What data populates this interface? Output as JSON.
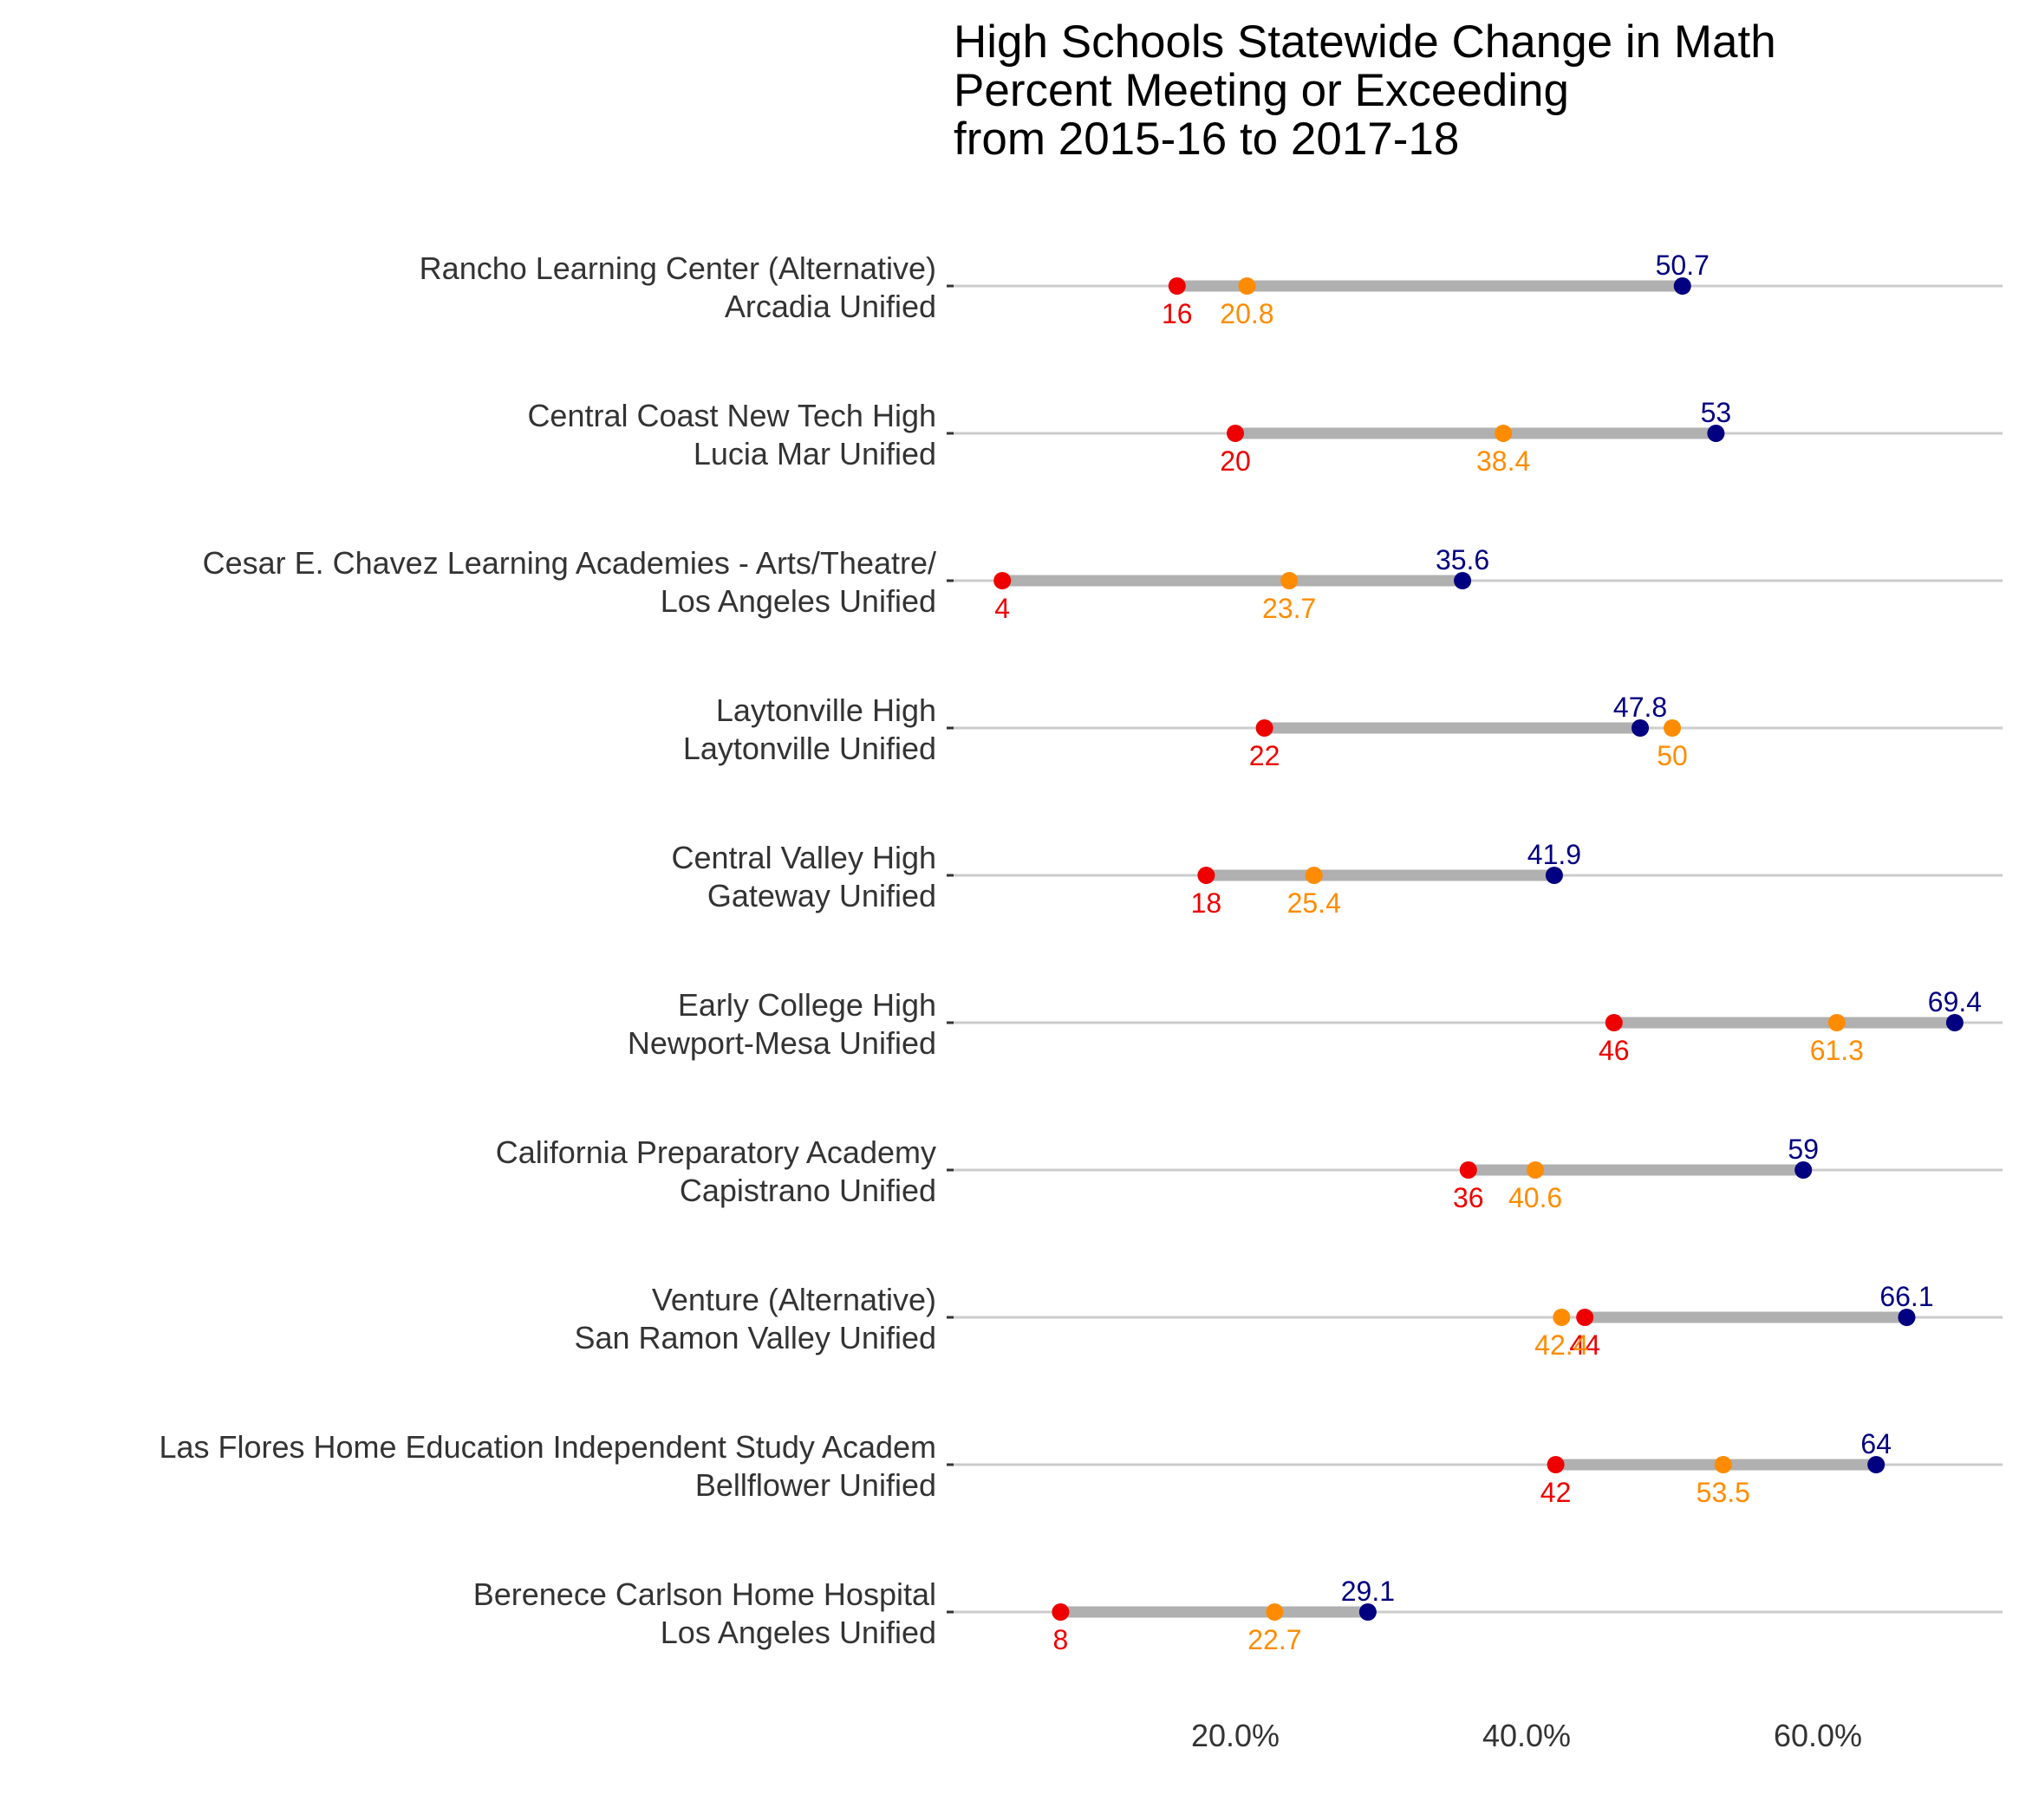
{
  "chart_data": {
    "type": "dumbbell",
    "title_lines": [
      "High Schools Statewide Change in Math",
      "Percent Meeting or Exceeding",
      "from 2015-16 to 2017-18"
    ],
    "xlabel": "",
    "ylabel": "",
    "xlim": [
      0,
      70
    ],
    "x_ticks": [
      20,
      40,
      60
    ],
    "x_tick_labels": [
      "20.0%",
      "40.0%",
      "60.0%"
    ],
    "grid": "horizontal lines at each row",
    "colors": {
      "start": "#ee0000",
      "middle": "#ff8c00",
      "end": "#000080",
      "bar": "#b0b0b0",
      "gridline": "#cccccc"
    },
    "series": [
      {
        "name": "start",
        "color": "#ee0000"
      },
      {
        "name": "middle",
        "color": "#ff8c00"
      },
      {
        "name": "end",
        "color": "#000080"
      }
    ],
    "rows": [
      {
        "school": "Rancho Learning Center (Alternative)",
        "district": "Arcadia Unified",
        "start": 16,
        "middle": 20.8,
        "end": 50.7,
        "start_label": "16",
        "middle_label": "20.8",
        "end_label": "50.7"
      },
      {
        "school": "Central Coast New Tech High",
        "district": "Lucia Mar Unified",
        "start": 20,
        "middle": 38.4,
        "end": 53,
        "start_label": "20",
        "middle_label": "38.4",
        "end_label": "53"
      },
      {
        "school": "Cesar E. Chavez Learning Academies - Arts/Theatre/",
        "district": "Los Angeles Unified",
        "start": 4,
        "middle": 23.7,
        "end": 35.6,
        "start_label": "4",
        "middle_label": "23.7",
        "end_label": "35.6"
      },
      {
        "school": "Laytonville High",
        "district": "Laytonville Unified",
        "start": 22,
        "middle": 50,
        "end": 47.8,
        "start_label": "22",
        "middle_label": "50",
        "end_label": "47.8"
      },
      {
        "school": "Central Valley High",
        "district": "Gateway Unified",
        "start": 18,
        "middle": 25.4,
        "end": 41.9,
        "start_label": "18",
        "middle_label": "25.4",
        "end_label": "41.9"
      },
      {
        "school": "Early College High",
        "district": "Newport-Mesa Unified",
        "start": 46,
        "middle": 61.3,
        "end": 69.4,
        "start_label": "46",
        "middle_label": "61.3",
        "end_label": "69.4"
      },
      {
        "school": "California Preparatory Academy",
        "district": "Capistrano Unified",
        "start": 36,
        "middle": 40.6,
        "end": 59,
        "start_label": "36",
        "middle_label": "40.6",
        "end_label": "59"
      },
      {
        "school": "Venture (Alternative)",
        "district": "San Ramon Valley Unified",
        "start": 44,
        "middle": 42.4,
        "end": 66.1,
        "start_label": "44",
        "middle_label": "42.4",
        "end_label": "66.1"
      },
      {
        "school": "Las Flores Home Education Independent Study Academ",
        "district": "Bellflower Unified",
        "start": 42,
        "middle": 53.5,
        "end": 64,
        "start_label": "42",
        "middle_label": "53.5",
        "end_label": "64"
      },
      {
        "school": "Berenece Carlson Home Hospital",
        "district": "Los Angeles Unified",
        "start": 8,
        "middle": 22.7,
        "end": 29.1,
        "start_label": "8",
        "middle_label": "22.7",
        "end_label": "29.1"
      }
    ]
  }
}
